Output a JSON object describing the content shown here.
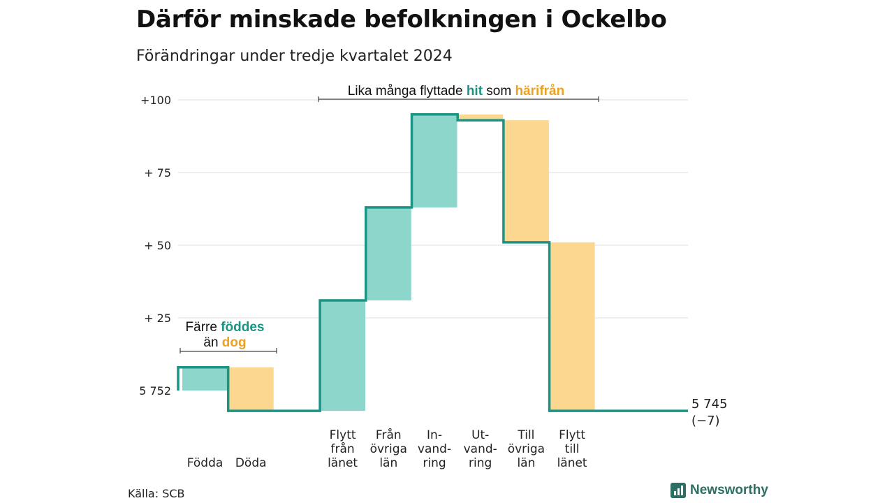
{
  "title": "Därför minskade befolkningen i Ockelbo",
  "subtitle": "Förändringar under tredje kvartalet 2024",
  "source": "Källa: SCB",
  "brand": "Newsworthy",
  "colors": {
    "inflow": "#8dd6cc",
    "outflow": "#fbd78f",
    "line": "#1a9484",
    "hit": "#1a9484",
    "harifran": "#e9a224",
    "grid": "#dddddd"
  },
  "chart_data": {
    "type": "waterfall",
    "start_value": 5752,
    "ylim_relative": [
      -7,
      100
    ],
    "yticks": [
      {
        "value": 100,
        "label": "+100"
      },
      {
        "value": 75,
        "label": "+ 75"
      },
      {
        "value": 50,
        "label": "+ 50"
      },
      {
        "value": 25,
        "label": "+ 25"
      },
      {
        "value": 0,
        "label": "5 752"
      }
    ],
    "grid": true,
    "categories": [
      {
        "lines": [
          "Födda"
        ],
        "value": 8,
        "kind": "in"
      },
      {
        "lines": [
          "Döda"
        ],
        "value": -15,
        "kind": "out"
      },
      {
        "lines": [],
        "value": 0,
        "kind": "gap"
      },
      {
        "lines": [
          "Flytt",
          "från",
          "länet"
        ],
        "value": 38,
        "kind": "in"
      },
      {
        "lines": [
          "Från",
          "övriga",
          "län"
        ],
        "value": 32,
        "kind": "in"
      },
      {
        "lines": [
          "In-",
          "vand-",
          "ring"
        ],
        "value": 32,
        "kind": "in"
      },
      {
        "lines": [
          "Ut-",
          "vand-",
          "ring"
        ],
        "value": -2,
        "kind": "out"
      },
      {
        "lines": [
          "Till",
          "övriga",
          "län"
        ],
        "value": -42,
        "kind": "out"
      },
      {
        "lines": [
          "Flytt",
          "till",
          "länet"
        ],
        "value": -58,
        "kind": "out"
      }
    ],
    "end_value_label": "5 745",
    "end_change_label": "(−7)",
    "annotations": {
      "births": {
        "line1_a": "Färre ",
        "line1_b": "föddes",
        "line2_a": "än ",
        "line2_b": "dog"
      },
      "moves": {
        "text_a": "Lika många flyttade ",
        "text_b": "hit",
        "text_c": " som ",
        "text_d": "härifrån"
      }
    }
  }
}
